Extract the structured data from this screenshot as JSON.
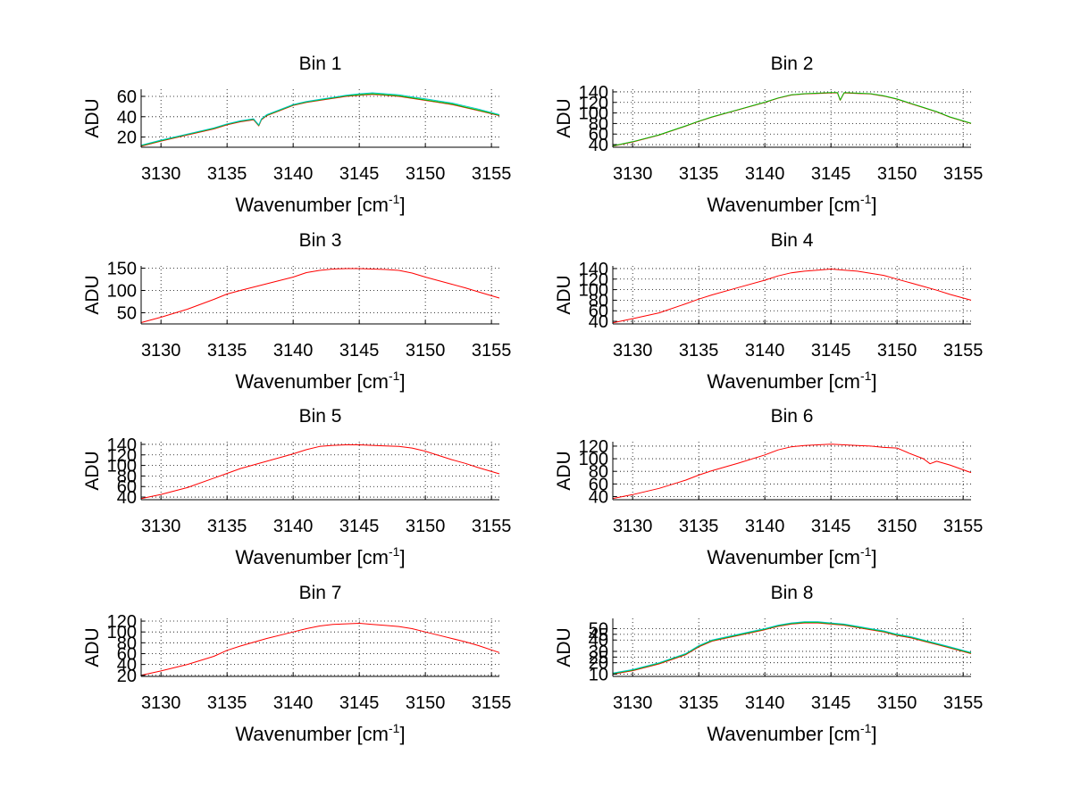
{
  "chart_data": [
    {
      "type": "line",
      "title": "Bin 1",
      "xlabel": "Wavenumber [cm",
      "xlabel_sup": "-1",
      "xlabel_end": "]",
      "ylabel": "ADU",
      "xlim": [
        3128.5,
        3155.6
      ],
      "ylim": [
        10,
        67
      ],
      "xticks": [
        3130,
        3135,
        3140,
        3145,
        3150,
        3155
      ],
      "yticks": [
        20,
        40,
        60
      ],
      "grid": true,
      "x": [
        3128.5,
        3130,
        3132,
        3134,
        3135,
        3136,
        3137,
        3137.4,
        3137.6,
        3138,
        3139,
        3140,
        3141,
        3142,
        3143,
        3144,
        3145,
        3146,
        3147,
        3148,
        3149,
        3150,
        3151,
        3152,
        3153,
        3154,
        3155.6
      ],
      "series": [
        {
          "color": "#ff0000",
          "values": [
            11,
            16,
            22,
            28,
            32,
            35,
            37,
            31,
            37,
            41,
            46,
            51,
            54,
            56,
            58,
            60,
            61,
            62,
            61,
            60,
            58,
            56,
            54,
            52,
            49,
            46,
            41
          ]
        },
        {
          "color": "#00c000",
          "values": [
            11.5,
            16.5,
            22.5,
            28.5,
            32.5,
            35.5,
            37.5,
            31.5,
            37.5,
            41.5,
            46.5,
            51.5,
            54.5,
            56.5,
            58.5,
            60.5,
            61.5,
            62.5,
            61.5,
            60.5,
            58.5,
            56.5,
            54.5,
            52.5,
            49.5,
            46.5,
            41.5
          ]
        },
        {
          "color": "#00c8c8",
          "values": [
            12,
            17,
            23,
            29,
            33,
            36,
            38,
            32,
            38,
            42,
            47,
            52,
            55,
            57,
            59,
            61,
            62.5,
            63.5,
            62.5,
            61.5,
            59.5,
            57.5,
            55.5,
            53.5,
            50.5,
            47.5,
            42
          ]
        }
      ]
    },
    {
      "type": "line",
      "title": "Bin 2",
      "xlabel": "Wavenumber [cm",
      "xlabel_sup": "-1",
      "xlabel_end": "]",
      "ylabel": "ADU",
      "xlim": [
        3128.5,
        3155.6
      ],
      "ylim": [
        35,
        145
      ],
      "xticks": [
        3130,
        3135,
        3140,
        3145,
        3150,
        3155
      ],
      "yticks": [
        40,
        60,
        80,
        100,
        120,
        140
      ],
      "grid": true,
      "x": [
        3128.5,
        3130,
        3132,
        3134,
        3135,
        3136,
        3138,
        3140,
        3141,
        3142,
        3143,
        3144,
        3145,
        3145.5,
        3145.7,
        3146,
        3147,
        3148,
        3149,
        3150,
        3151,
        3152,
        3153,
        3154,
        3155.6
      ],
      "series": [
        {
          "color": "#ff0000",
          "values": [
            37,
            45,
            58,
            75,
            84,
            92,
            106,
            120,
            128,
            134,
            136,
            137,
            138,
            138,
            124,
            138,
            137,
            136,
            132,
            126,
            118,
            110,
            102,
            92,
            80
          ]
        },
        {
          "color": "#00c000",
          "values": [
            37.5,
            45.5,
            58.5,
            75.5,
            84.5,
            92.5,
            106.5,
            120.5,
            128.5,
            134.5,
            136.5,
            137.5,
            138.5,
            138.5,
            124.5,
            138.5,
            137.5,
            136.5,
            132.5,
            126.5,
            118.5,
            110.5,
            102.5,
            92.5,
            80.5
          ]
        }
      ]
    },
    {
      "type": "line",
      "title": "Bin 3",
      "xlabel": "Wavenumber [cm",
      "xlabel_sup": "-1",
      "xlabel_end": "]",
      "ylabel": "ADU",
      "xlim": [
        3128.5,
        3155.6
      ],
      "ylim": [
        25,
        155
      ],
      "xticks": [
        3130,
        3135,
        3140,
        3145,
        3150,
        3155
      ],
      "yticks": [
        50,
        100,
        150
      ],
      "grid": true,
      "x": [
        3128.5,
        3130,
        3132,
        3134,
        3135,
        3136,
        3138,
        3140,
        3141,
        3142,
        3143,
        3144,
        3145,
        3146,
        3147,
        3148,
        3149,
        3150,
        3151,
        3152,
        3153,
        3154,
        3155.6
      ],
      "series": [
        {
          "color": "#ff0000",
          "values": [
            28,
            40,
            58,
            80,
            92,
            100,
            115,
            130,
            140,
            145,
            148,
            149,
            149,
            148,
            147,
            145,
            139,
            130,
            122,
            114,
            106,
            97,
            83
          ]
        }
      ]
    },
    {
      "type": "line",
      "title": "Bin 4",
      "xlabel": "Wavenumber [cm",
      "xlabel_sup": "-1",
      "xlabel_end": "]",
      "ylabel": "ADU",
      "xlim": [
        3128.5,
        3155.6
      ],
      "ylim": [
        35,
        145
      ],
      "xticks": [
        3130,
        3135,
        3140,
        3145,
        3150,
        3155
      ],
      "yticks": [
        40,
        60,
        80,
        100,
        120,
        140
      ],
      "grid": true,
      "x": [
        3128.5,
        3130,
        3132,
        3134,
        3135,
        3136,
        3138,
        3140,
        3141,
        3142,
        3143,
        3144,
        3145,
        3146,
        3147,
        3148,
        3149,
        3150,
        3151,
        3152,
        3153,
        3154,
        3155.6
      ],
      "series": [
        {
          "color": "#ff0000",
          "values": [
            37,
            45,
            56,
            73,
            82,
            90,
            104,
            118,
            126,
            132,
            135,
            137,
            139,
            137,
            135,
            131,
            127,
            120,
            113,
            106,
            99,
            91,
            80
          ]
        }
      ]
    },
    {
      "type": "line",
      "title": "Bin 5",
      "xlabel": "Wavenumber [cm",
      "xlabel_sup": "-1",
      "xlabel_end": "]",
      "ylabel": "ADU",
      "xlim": [
        3128.5,
        3155.6
      ],
      "ylim": [
        35,
        145
      ],
      "xticks": [
        3130,
        3135,
        3140,
        3145,
        3150,
        3155
      ],
      "yticks": [
        40,
        60,
        80,
        100,
        120,
        140
      ],
      "grid": true,
      "x": [
        3128.5,
        3130,
        3132,
        3134,
        3135,
        3136,
        3138,
        3140,
        3141,
        3142,
        3143,
        3144,
        3145,
        3146,
        3147,
        3148,
        3149,
        3150,
        3151,
        3152,
        3153,
        3154,
        3155.6
      ],
      "series": [
        {
          "color": "#ff0000",
          "values": [
            37,
            45,
            58,
            76,
            85,
            94,
            108,
            122,
            130,
            136,
            138,
            139,
            139,
            138,
            137,
            136,
            133,
            127,
            119,
            111,
            104,
            96,
            84
          ]
        }
      ]
    },
    {
      "type": "line",
      "title": "Bin 6",
      "xlabel": "Wavenumber [cm",
      "xlabel_sup": "-1",
      "xlabel_end": "]",
      "ylabel": "ADU",
      "xlim": [
        3128.5,
        3155.6
      ],
      "ylim": [
        35,
        127
      ],
      "xticks": [
        3130,
        3135,
        3140,
        3145,
        3150,
        3155
      ],
      "yticks": [
        40,
        60,
        80,
        100,
        120
      ],
      "grid": true,
      "x": [
        3128.5,
        3130,
        3132,
        3134,
        3135,
        3136,
        3138,
        3140,
        3141,
        3142,
        3143,
        3144,
        3145,
        3146,
        3147,
        3148,
        3149,
        3150,
        3151,
        3152,
        3152.5,
        3153,
        3154,
        3155.6
      ],
      "series": [
        {
          "color": "#ff0000",
          "values": [
            37,
            43,
            53,
            66,
            74,
            81,
            93,
            106,
            114,
            119,
            121,
            122,
            123,
            122,
            121,
            120,
            118,
            117,
            108,
            100,
            92,
            96,
            90,
            78
          ]
        }
      ]
    },
    {
      "type": "line",
      "title": "Bin 7",
      "xlabel": "Wavenumber [cm",
      "xlabel_sup": "-1",
      "xlabel_end": "]",
      "ylabel": "ADU",
      "xlim": [
        3128.5,
        3155.6
      ],
      "ylim": [
        18,
        125
      ],
      "xticks": [
        3130,
        3135,
        3140,
        3145,
        3150,
        3155
      ],
      "yticks": [
        20,
        40,
        60,
        80,
        100,
        120
      ],
      "grid": true,
      "x": [
        3128.5,
        3130,
        3132,
        3134,
        3135,
        3136,
        3138,
        3140,
        3141,
        3142,
        3143,
        3144,
        3145,
        3146,
        3147,
        3148,
        3149,
        3150,
        3151,
        3152,
        3153,
        3154,
        3155.6
      ],
      "series": [
        {
          "color": "#ff0000",
          "values": [
            20,
            28,
            40,
            55,
            66,
            74,
            88,
            100,
            106,
            111,
            114,
            115,
            116,
            114,
            112,
            110,
            106,
            100,
            94,
            88,
            82,
            75,
            62
          ]
        }
      ]
    },
    {
      "type": "line",
      "title": "Bin 8",
      "xlabel": "Wavenumber [cm",
      "xlabel_sup": "-1",
      "xlabel_end": "]",
      "ylabel": "ADU",
      "xlim": [
        3128.5,
        3155.6
      ],
      "ylim": [
        8,
        59
      ],
      "xticks": [
        3130,
        3135,
        3140,
        3145,
        3150,
        3155
      ],
      "yticks": [
        10,
        20,
        25,
        30,
        40,
        45,
        50
      ],
      "ytick_labels": [
        "10",
        "20",
        "25",
        "30",
        "40",
        "45",
        "50"
      ],
      "grid": true,
      "x": [
        3128.5,
        3130,
        3132,
        3134,
        3135,
        3136,
        3138,
        3140,
        3141,
        3142,
        3143,
        3144,
        3145,
        3146,
        3147,
        3148,
        3149,
        3150,
        3151,
        3152,
        3153,
        3154,
        3155.6
      ],
      "series": [
        {
          "color": "#ff0000",
          "values": [
            10,
            13,
            19,
            27,
            34,
            39,
            44,
            49,
            52,
            54,
            55,
            55,
            54,
            53,
            51,
            49,
            47,
            44,
            42,
            39,
            36,
            33,
            28
          ]
        },
        {
          "color": "#00c000",
          "values": [
            10.5,
            13.5,
            19.5,
            27.5,
            34.5,
            39.5,
            44.5,
            49.5,
            52.5,
            54.5,
            55.5,
            55.5,
            54.5,
            53.5,
            51.5,
            49.5,
            47.5,
            44.5,
            42.5,
            39.5,
            36.5,
            33.5,
            28.5
          ]
        },
        {
          "color": "#00c8c8",
          "values": [
            11,
            14,
            20,
            28,
            35,
            40,
            45,
            50,
            53,
            55,
            56,
            56,
            55,
            54,
            52,
            50,
            48,
            45,
            43,
            40,
            37,
            34,
            29
          ]
        }
      ]
    }
  ]
}
